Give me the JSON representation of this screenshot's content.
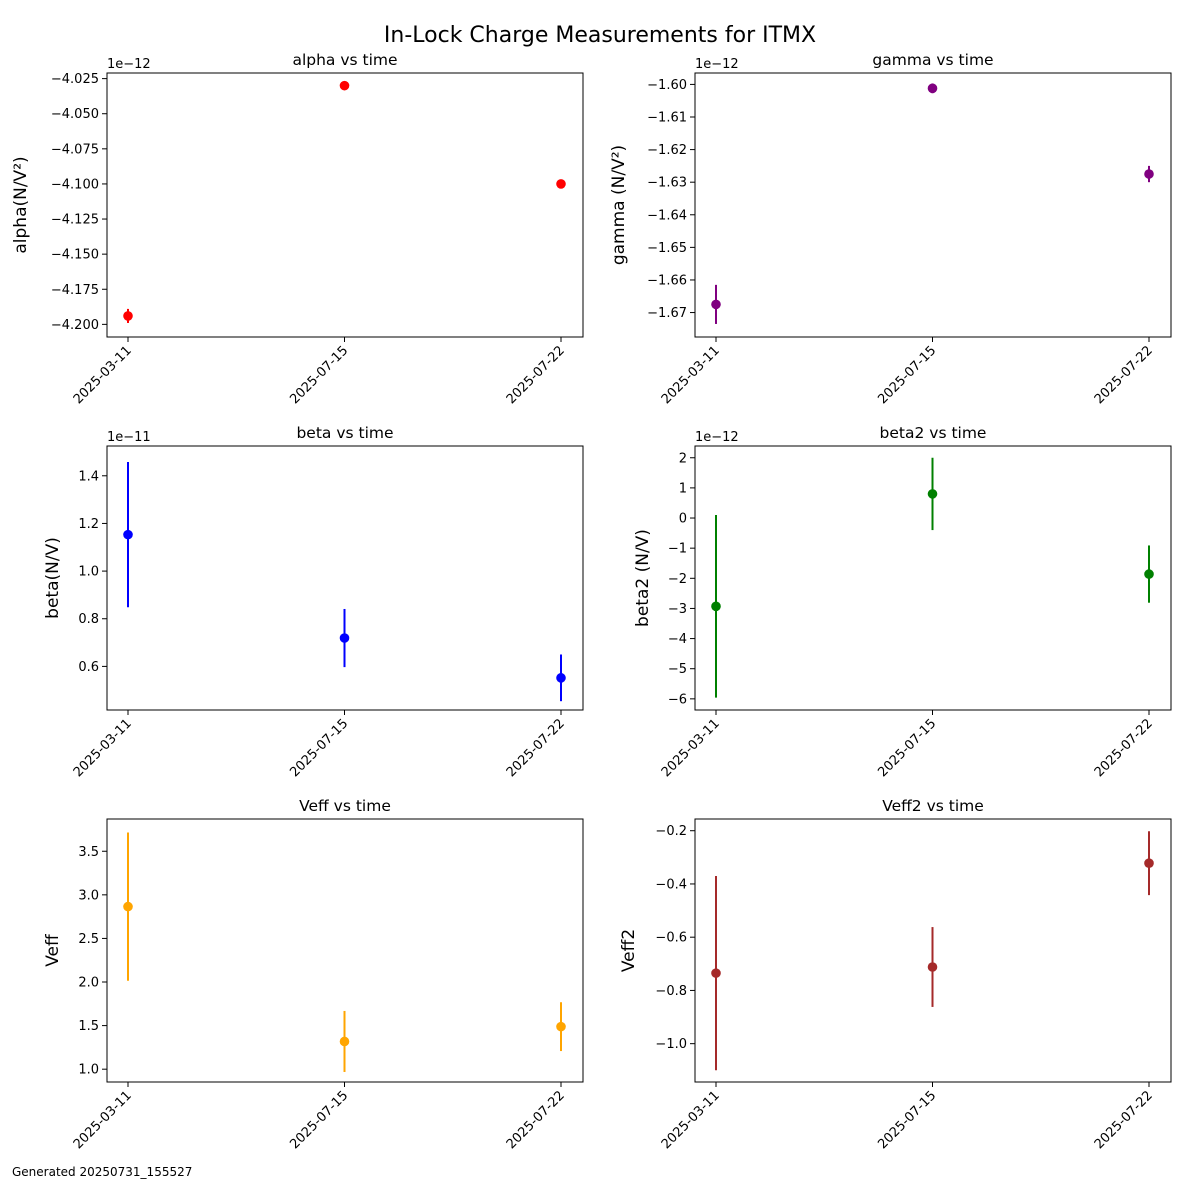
{
  "figure": {
    "title": "In-Lock Charge Measurements for ITMX",
    "footer": "Generated 20250731_155527"
  },
  "chart_data": [
    {
      "type": "scatter",
      "title": "alpha vs time",
      "ylabel": "alpha(N/V²)",
      "offset_text": "1e−12",
      "color": "#ff0000",
      "x": [
        "2025-03-11",
        "2025-07-15",
        "2025-07-22"
      ],
      "y": [
        -4.194,
        -4.03,
        -4.1
      ],
      "yerr": [
        0.005,
        0.0,
        0.0
      ],
      "ylim": [
        -4.209,
        -4.021
      ],
      "yticks": [
        -4.2,
        -4.175,
        -4.15,
        -4.125,
        -4.1,
        -4.075,
        -4.05,
        -4.025
      ],
      "ytick_labels": [
        "−4.200",
        "−4.175",
        "−4.150",
        "−4.125",
        "−4.100",
        "−4.075",
        "−4.050",
        "−4.025"
      ]
    },
    {
      "type": "scatter",
      "title": "gamma vs time",
      "ylabel": "gamma (N/V²)",
      "offset_text": "1e−12",
      "color": "#800080",
      "x": [
        "2025-03-11",
        "2025-07-15",
        "2025-07-22"
      ],
      "y": [
        -1.6675,
        -1.6012,
        -1.6275
      ],
      "yerr": [
        0.006,
        0.0015,
        0.0025
      ],
      "ylim": [
        -1.6775,
        -1.5965
      ],
      "yticks": [
        -1.67,
        -1.66,
        -1.65,
        -1.64,
        -1.63,
        -1.62,
        -1.61,
        -1.6
      ],
      "ytick_labels": [
        "−1.67",
        "−1.66",
        "−1.65",
        "−1.64",
        "−1.63",
        "−1.62",
        "−1.61",
        "−1.60"
      ]
    },
    {
      "type": "scatter",
      "title": "beta vs time",
      "ylabel": "beta(N/V)",
      "offset_text": "1e−11",
      "color": "#0000ff",
      "x": [
        "2025-03-11",
        "2025-07-15",
        "2025-07-22"
      ],
      "y": [
        1.153,
        0.719,
        0.552
      ],
      "yerr": [
        0.305,
        0.122,
        0.098
      ],
      "ylim": [
        0.417,
        1.525
      ],
      "yticks": [
        0.6,
        0.8,
        1.0,
        1.2,
        1.4
      ],
      "ytick_labels": [
        "0.6",
        "0.8",
        "1.0",
        "1.2",
        "1.4"
      ]
    },
    {
      "type": "scatter",
      "title": "beta2 vs time",
      "ylabel": "beta2 (N/V)",
      "offset_text": "1e−12",
      "color": "#008000",
      "x": [
        "2025-03-11",
        "2025-07-15",
        "2025-07-22"
      ],
      "y": [
        -2.93,
        0.8,
        -1.86
      ],
      "yerr": [
        3.03,
        1.2,
        0.95
      ],
      "ylim": [
        -6.37,
        2.39
      ],
      "yticks": [
        -6,
        -5,
        -4,
        -3,
        -2,
        -1,
        0,
        1,
        2
      ],
      "ytick_labels": [
        "−6",
        "−5",
        "−4",
        "−3",
        "−2",
        "−1",
        "0",
        "1",
        "2"
      ]
    },
    {
      "type": "scatter",
      "title": "Veff vs time",
      "ylabel": "Veff",
      "offset_text": "",
      "color": "#ffa500",
      "x": [
        "2025-03-11",
        "2025-07-15",
        "2025-07-22"
      ],
      "y": [
        2.865,
        1.318,
        1.488
      ],
      "yerr": [
        0.85,
        0.35,
        0.28
      ],
      "ylim": [
        0.853,
        3.87
      ],
      "yticks": [
        1.0,
        1.5,
        2.0,
        2.5,
        3.0,
        3.5
      ],
      "ytick_labels": [
        "1.0",
        "1.5",
        "2.0",
        "2.5",
        "3.0",
        "3.5"
      ]
    },
    {
      "type": "scatter",
      "title": "Veff2 vs time",
      "ylabel": "Veff2",
      "offset_text": "",
      "color": "#a52a2a",
      "x": [
        "2025-03-11",
        "2025-07-15",
        "2025-07-22"
      ],
      "y": [
        -0.735,
        -0.712,
        -0.322
      ],
      "yerr": [
        0.365,
        0.15,
        0.12
      ],
      "ylim": [
        -1.144,
        -0.156
      ],
      "yticks": [
        -1.0,
        -0.8,
        -0.6,
        -0.4,
        -0.2
      ],
      "ytick_labels": [
        "−1.0",
        "−0.8",
        "−0.6",
        "−0.4",
        "−0.2"
      ]
    }
  ]
}
